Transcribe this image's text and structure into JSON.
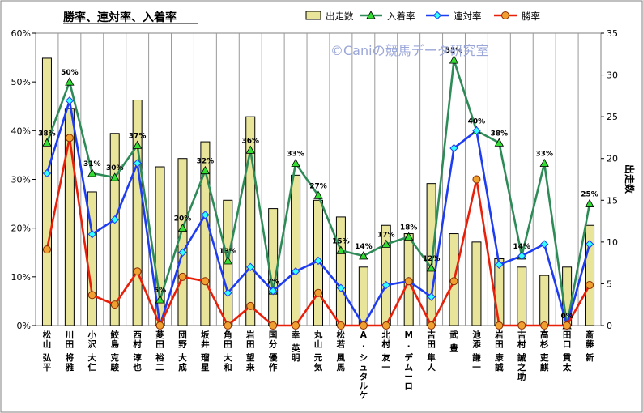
{
  "chart_data": {
    "type": "bar",
    "title": "勝率、連対率、入着率",
    "watermark": "©Caniの競馬データ研究室",
    "categories": [
      "松山 弘平",
      "川田 将雅",
      "小沢 大仁",
      "鮫島 克駿",
      "西村 淳也",
      "菱田 裕二",
      "団野 大成",
      "坂井 瑠星",
      "角田 大和",
      "岩田 望来",
      "国分 優作",
      "幸 英明",
      "丸山 元気",
      "松若 風馬",
      "A. シュタルケ",
      "北村 友一",
      "M. デムーロ",
      "吉田 隼人",
      "武 豊",
      "池添 謙一",
      "岩田 康誠",
      "吉村 誠之助",
      "高杉 吏麒",
      "田口 貫太",
      "斎藤 新"
    ],
    "series": [
      {
        "name": "出走数",
        "kind": "bar",
        "axis": "right",
        "color": "#e8e49a",
        "values": [
          32,
          26,
          16,
          23,
          27,
          19,
          20,
          22,
          15,
          25,
          14,
          18,
          15,
          13,
          7,
          12,
          11,
          17,
          11,
          10,
          8,
          7,
          6,
          7,
          12
        ]
      },
      {
        "name": "入着率",
        "kind": "line",
        "axis": "left",
        "color": "#2e8b57",
        "marker": "triangle",
        "values": [
          0.375,
          0.5,
          0.3125,
          0.304,
          0.37,
          0.053,
          0.2,
          0.318,
          0.133,
          0.36,
          0.071,
          0.333,
          0.267,
          0.154,
          0.143,
          0.167,
          0.182,
          0.118,
          0.545,
          0.4,
          0.375,
          0.143,
          0.333,
          0.0,
          0.25
        ]
      },
      {
        "name": "連対率",
        "kind": "line",
        "axis": "left",
        "color": "#1e3cf0",
        "marker": "diamond",
        "values": [
          0.3125,
          0.4615,
          0.1875,
          0.2174,
          0.333,
          0.0,
          0.15,
          0.227,
          0.067,
          0.12,
          0.071,
          0.111,
          0.133,
          0.077,
          0.0,
          0.083,
          0.091,
          0.059,
          0.364,
          0.4,
          0.125,
          0.143,
          0.167,
          0.0,
          0.167
        ]
      },
      {
        "name": "勝率",
        "kind": "line",
        "axis": "left",
        "color": "#e8200a",
        "marker": "circle",
        "values": [
          0.156,
          0.385,
          0.0625,
          0.043,
          0.111,
          0.0,
          0.1,
          0.091,
          0.0,
          0.04,
          0.0,
          0.0,
          0.067,
          0.0,
          0.0,
          0.0,
          0.091,
          0.0,
          0.091,
          0.3,
          0.0,
          0.0,
          0.0,
          0.0,
          0.083
        ]
      }
    ],
    "data_labels": [
      "38%",
      "50%",
      "31%",
      "30%",
      "37%",
      "5%",
      "20%",
      "32%",
      "13%",
      "36%",
      "7%",
      "33%",
      "27%",
      "15%",
      "14%",
      "17%",
      "18%",
      "12%",
      "55%",
      "40%",
      "38%",
      "14%",
      "33%",
      "0%",
      "25%"
    ],
    "y_left": {
      "min": 0,
      "max": 0.6,
      "ticks": [
        "0%",
        "10%",
        "20%",
        "30%",
        "40%",
        "50%",
        "60%"
      ]
    },
    "y_right": {
      "min": 0,
      "max": 35,
      "ticks": [
        "0",
        "5",
        "10",
        "15",
        "20",
        "25",
        "30",
        "35"
      ],
      "label": "出走数"
    },
    "legend_placement": "top",
    "grid": "vertical"
  }
}
